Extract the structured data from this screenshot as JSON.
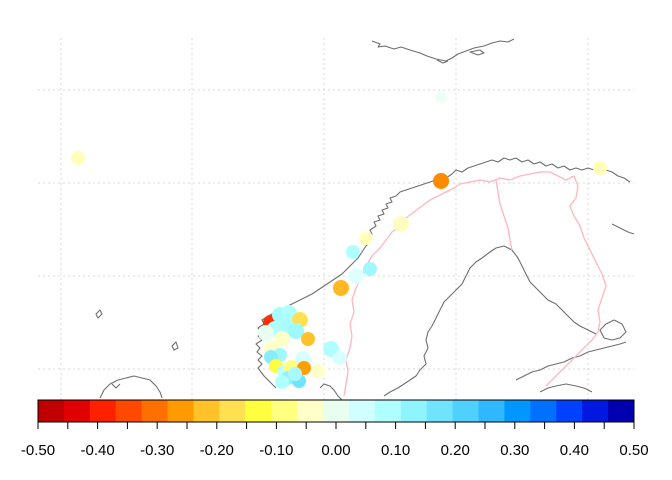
{
  "map": {
    "type": "station-map",
    "region": "Scandinavia",
    "grid": true,
    "colors": {
      "coastline": "#6e6e6e",
      "border": "#ffb6c1",
      "grid": "#d9d9d9"
    }
  },
  "colorbar": {
    "min": -0.5,
    "max": 0.5,
    "colors": [
      "#c00000",
      "#e00000",
      "#ff2000",
      "#ff4800",
      "#ff7000",
      "#ff9a00",
      "#ffc228",
      "#ffe050",
      "#ffff40",
      "#ffff80",
      "#ffffc8",
      "#e8fff0",
      "#d0ffff",
      "#b0ffff",
      "#90f4ff",
      "#70e4ff",
      "#50d0ff",
      "#30b8ff",
      "#0098ff",
      "#0070ff",
      "#0040ff",
      "#0018e0",
      "#0000b0"
    ],
    "tick_labels": [
      "-0.50",
      "-0.40",
      "-0.30",
      "-0.20",
      "-0.10",
      "0.00",
      "0.10",
      "0.20",
      "0.30",
      "0.40",
      "0.50"
    ]
  },
  "stations": [
    {
      "value": -0.42,
      "color": "#ff3000"
    },
    {
      "value": 0.13,
      "color": "#a8fbff"
    },
    {
      "value": 0.12,
      "color": "#b0ffff"
    },
    {
      "value": -0.12,
      "color": "#ffe050"
    },
    {
      "value": 0.13,
      "color": "#a8fbff"
    },
    {
      "value": 0.12,
      "color": "#b0ffff"
    },
    {
      "value": 0.03,
      "color": "#e8fff0"
    },
    {
      "value": -0.05,
      "color": "#ffffc8"
    },
    {
      "value": 0.14,
      "color": "#a0f8ff"
    },
    {
      "value": -0.18,
      "color": "#ffc228"
    },
    {
      "value": -0.05,
      "color": "#ffffc8"
    },
    {
      "value": 0.14,
      "color": "#a0f8ff"
    },
    {
      "value": 0.18,
      "color": "#88eeff"
    },
    {
      "value": -0.1,
      "color": "#ffff40"
    },
    {
      "value": 0.1,
      "color": "#c0ffff"
    },
    {
      "value": -0.08,
      "color": "#ffff80"
    },
    {
      "value": 0.16,
      "color": "#90f4ff"
    },
    {
      "value": 0.12,
      "color": "#b0ffff"
    },
    {
      "value": 0.22,
      "color": "#70e4ff"
    },
    {
      "value": 0.06,
      "color": "#d8ffff"
    },
    {
      "value": -0.2,
      "color": "#ffa000"
    },
    {
      "value": 0.12,
      "color": "#b0ffff"
    },
    {
      "value": 0.06,
      "color": "#d8ffff"
    },
    {
      "value": 0.05,
      "color": "#e0ffff"
    },
    {
      "value": -0.02,
      "color": "#ffffd0"
    },
    {
      "value": -0.18,
      "color": "#ffb820"
    },
    {
      "value": 0.15,
      "color": "#a0f8ff"
    },
    {
      "value": 0.12,
      "color": "#b0ffff"
    },
    {
      "value": -0.05,
      "color": "#fffcc0"
    },
    {
      "value": -0.06,
      "color": "#ffffb8"
    },
    {
      "value": -0.25,
      "color": "#ff8a00"
    },
    {
      "value": -0.06,
      "color": "#ffffb8"
    },
    {
      "value": 0.0,
      "color": "#ecfff6"
    },
    {
      "value": -0.06,
      "color": "#ffffb8"
    },
    {
      "value": 0.14,
      "color": "#a8faff"
    },
    {
      "value": -0.04,
      "color": "#ffffc8"
    }
  ]
}
